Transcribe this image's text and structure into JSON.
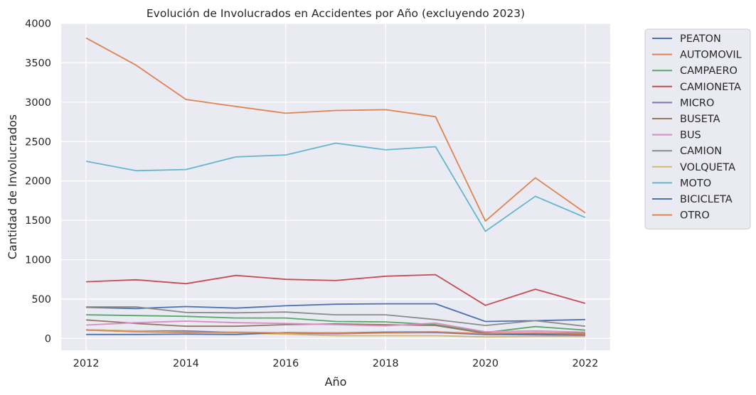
{
  "chart_data": {
    "type": "line",
    "title": "Evolución de Involucrados en Accidentes por Año (excluyendo 2023)",
    "xlabel": "Año",
    "ylabel": "Cantidad de Involucrados",
    "x": [
      2012,
      2013,
      2014,
      2015,
      2016,
      2017,
      2018,
      2019,
      2020,
      2021,
      2022
    ],
    "xlim": [
      2011.5,
      2022.5
    ],
    "ylim": [
      -150,
      4000
    ],
    "xticks": [
      2012,
      2014,
      2016,
      2018,
      2020,
      2022
    ],
    "yticks": [
      0,
      500,
      1000,
      1500,
      2000,
      2500,
      3000,
      3500,
      4000
    ],
    "grid": true,
    "legend_position": "outside-right",
    "series": [
      {
        "name": "PEATON",
        "color": "#4c72b0",
        "values": [
          395,
          380,
          405,
          385,
          415,
          435,
          440,
          440,
          215,
          225,
          240
        ]
      },
      {
        "name": "AUTOMOVIL",
        "color": "#dd8452",
        "values": [
          3815,
          3470,
          3035,
          2945,
          2860,
          2895,
          2905,
          2815,
          1490,
          2040,
          1595
        ]
      },
      {
        "name": "CAMPAERO",
        "color": "#55a868",
        "values": [
          300,
          290,
          280,
          260,
          260,
          215,
          210,
          175,
          75,
          150,
          105
        ]
      },
      {
        "name": "CAMIONETA",
        "color": "#c44e52",
        "values": [
          720,
          745,
          695,
          800,
          750,
          735,
          790,
          810,
          420,
          625,
          445
        ]
      },
      {
        "name": "MICRO",
        "color": "#8172b3",
        "values": [
          110,
          95,
          95,
          75,
          65,
          60,
          70,
          75,
          50,
          45,
          40
        ]
      },
      {
        "name": "BUSETA",
        "color": "#937860",
        "values": [
          235,
          190,
          155,
          155,
          175,
          185,
          175,
          165,
          65,
          70,
          65
        ]
      },
      {
        "name": "BUS",
        "color": "#da8bc3",
        "values": [
          170,
          200,
          220,
          200,
          190,
          175,
          160,
          195,
          85,
          95,
          80
        ]
      },
      {
        "name": "CAMION",
        "color": "#8c8c8c",
        "values": [
          400,
          400,
          330,
          325,
          335,
          300,
          300,
          240,
          165,
          225,
          155
        ]
      },
      {
        "name": "VOLQUETA",
        "color": "#ccb974",
        "values": [
          110,
          95,
          80,
          70,
          55,
          35,
          35,
          35,
          20,
          25,
          25
        ]
      },
      {
        "name": "MOTO",
        "color": "#64b5cd",
        "values": [
          2250,
          2130,
          2145,
          2305,
          2330,
          2480,
          2395,
          2435,
          1360,
          1805,
          1535
        ]
      },
      {
        "name": "BICICLETA",
        "color": "#4c72b0",
        "values": [
          50,
          50,
          55,
          50,
          75,
          70,
          80,
          85,
          50,
          60,
          45
        ]
      },
      {
        "name": "OTRO",
        "color": "#dd8452",
        "values": [
          105,
          85,
          75,
          80,
          70,
          70,
          70,
          85,
          60,
          70,
          55
        ]
      }
    ]
  }
}
